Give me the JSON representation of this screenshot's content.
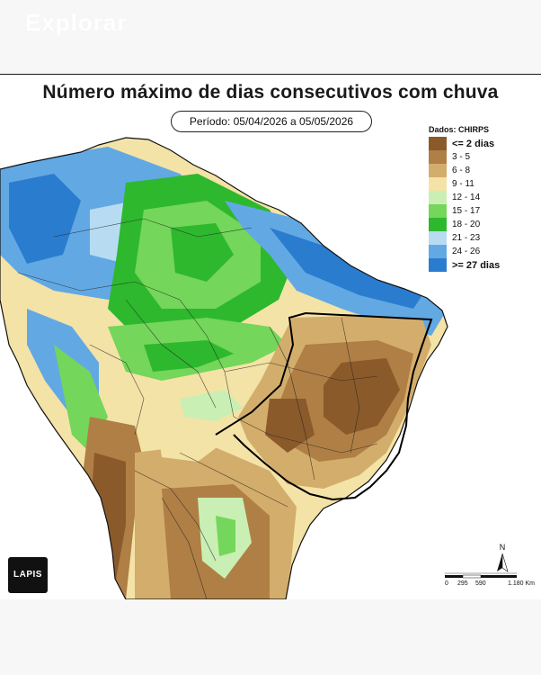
{
  "header": {
    "faded_label": "Explorar"
  },
  "map": {
    "title": "Número máximo de dias consecutivos com chuva",
    "period": "Período: 05/04/2026 a 05/05/2026",
    "legend": {
      "title": "Dados: CHIRPS",
      "items": [
        {
          "label": "<= 2 dias",
          "color": "#8b5a2b",
          "bold": true
        },
        {
          "label": "3 - 5",
          "color": "#b07f45",
          "bold": false
        },
        {
          "label": "6 - 8",
          "color": "#d3ad6b",
          "bold": false
        },
        {
          "label": "9 - 11",
          "color": "#f4e3a6",
          "bold": false
        },
        {
          "label": "12 - 14",
          "color": "#c9efb4",
          "bold": false
        },
        {
          "label": "15 - 17",
          "color": "#74d65a",
          "bold": false
        },
        {
          "label": "18 - 20",
          "color": "#2eb82e",
          "bold": false
        },
        {
          "label": "21 - 23",
          "color": "#b7dcf2",
          "bold": false
        },
        {
          "label": "24 - 26",
          "color": "#62a9e4",
          "bold": false
        },
        {
          "label": ">= 27 dias",
          "color": "#2a7ccf",
          "bold": true
        }
      ]
    },
    "logo_text": "LAPIS",
    "north_label": "N",
    "scale": {
      "ticks": [
        "0",
        "295",
        "590",
        "1.180 Km"
      ]
    },
    "colors": {
      "outline": "#111111",
      "ocean": "#ffffff"
    }
  }
}
